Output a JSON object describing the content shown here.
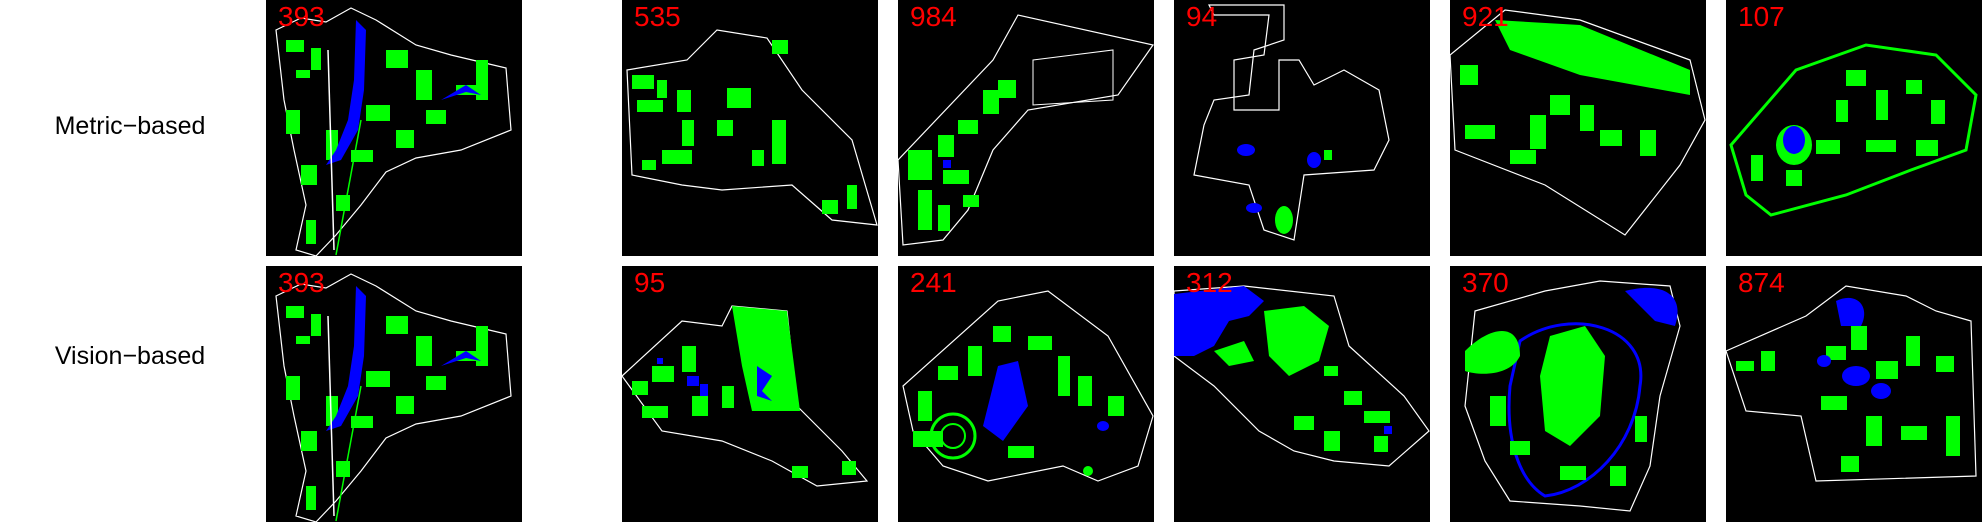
{
  "colors": {
    "background": "#000000",
    "parcel_outline": "#ffffff",
    "green_space": "#00ff00",
    "water": "#0000ff",
    "id_label": "#ff0000"
  },
  "rows": [
    {
      "label": "Metric−based",
      "tiles": [
        {
          "id": "393",
          "kind": "query"
        },
        {
          "id": "535",
          "kind": "result"
        },
        {
          "id": "984",
          "kind": "result"
        },
        {
          "id": "94",
          "kind": "result"
        },
        {
          "id": "921",
          "kind": "result"
        },
        {
          "id": "107",
          "kind": "result"
        }
      ]
    },
    {
      "label": "Vision−based",
      "tiles": [
        {
          "id": "393",
          "kind": "query"
        },
        {
          "id": "95",
          "kind": "result"
        },
        {
          "id": "241",
          "kind": "result"
        },
        {
          "id": "312",
          "kind": "result"
        },
        {
          "id": "370",
          "kind": "result"
        },
        {
          "id": "874",
          "kind": "result"
        }
      ]
    }
  ]
}
